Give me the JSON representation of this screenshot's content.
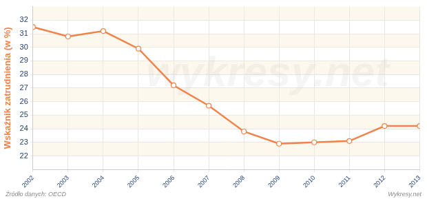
{
  "chart_data": {
    "type": "line",
    "y_label": "Wskaźnik zatrudnienia (w %)",
    "source": "Źródło danych: OECD",
    "credit": "Wykresy.net",
    "watermark": "wykresy.net",
    "categories": [
      "2002",
      "2003",
      "2004",
      "2005",
      "2006",
      "2007",
      "2008",
      "2009",
      "2010",
      "2011",
      "2012",
      "2013"
    ],
    "values": [
      31.5,
      30.8,
      31.2,
      29.9,
      27.2,
      25.7,
      23.8,
      22.9,
      23.0,
      23.1,
      24.2,
      24.2
    ],
    "color": "#f0834a",
    "marker": "circle",
    "line_style": "solid",
    "ylim": [
      21,
      33
    ],
    "yticks": [
      22,
      23,
      24,
      25,
      26,
      27,
      28,
      29,
      30,
      31,
      32
    ],
    "grid": true
  }
}
